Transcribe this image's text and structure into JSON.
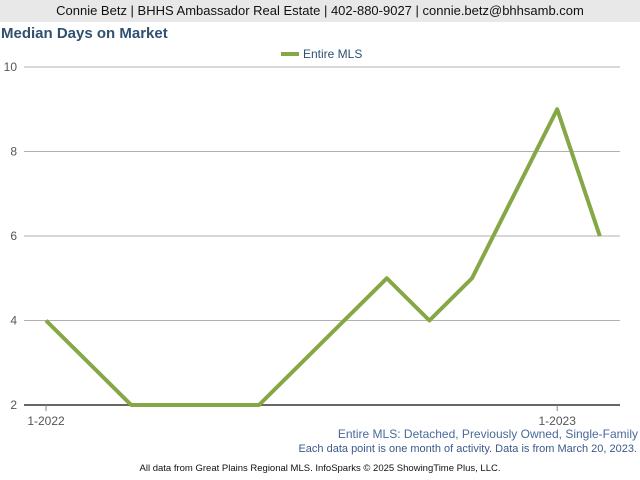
{
  "header": {
    "contact_text": "Connie Betz | BHHS Ambassador Real Estate | 402-880-9027 | connie.betz@bhhsamb.com"
  },
  "colors": {
    "series_line": "#86a746",
    "title": "#2f5070",
    "gridline": "#b0b0b0"
  },
  "footer": {
    "series_description": "Entire MLS: Detached, Previously Owned, Single-Family",
    "activity_note": "Each data point is one month of activity. Data is from March 20, 2023.",
    "source_note": "All data from Great Plains Regional MLS. InfoSparks © 2025 ShowingTime Plus, LLC."
  },
  "chart_data": {
    "type": "line",
    "title": "Median Days on Market",
    "xlabel": "",
    "ylabel": "",
    "x": [
      "2022-01",
      "2022-02",
      "2022-03",
      "2022-04",
      "2022-05",
      "2022-06",
      "2022-07",
      "2022-08",
      "2022-09",
      "2022-10",
      "2022-11",
      "2022-12",
      "2023-01",
      "2023-02"
    ],
    "x_tick_labels": [
      {
        "at": "2022-01",
        "label": "1-2022"
      },
      {
        "at": "2023-01",
        "label": "1-2023"
      }
    ],
    "series": [
      {
        "name": "Entire MLS",
        "values": [
          4,
          3,
          2,
          2,
          2,
          2,
          3,
          4,
          5,
          4,
          5,
          7,
          9,
          6
        ]
      }
    ],
    "ylim": [
      2,
      10
    ],
    "yticks": [
      2,
      4,
      6,
      8,
      10
    ],
    "grid": true,
    "legend_position": "top-center"
  }
}
